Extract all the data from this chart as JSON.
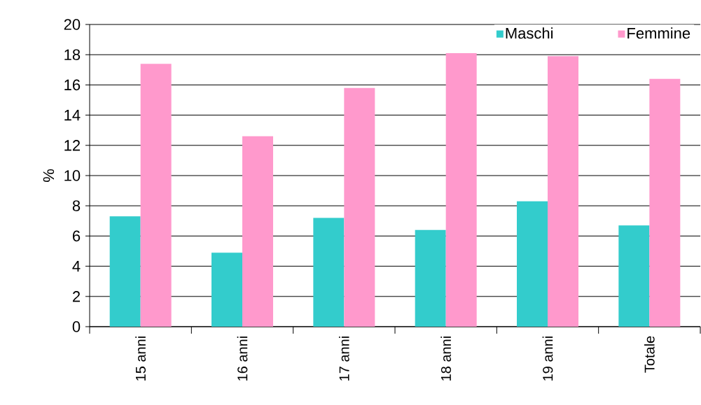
{
  "chart_data": {
    "type": "bar",
    "ylabel": "%",
    "categories": [
      "15 anni",
      "16 anni",
      "17 anni",
      "18 anni",
      "19 anni",
      "Totale"
    ],
    "series": [
      {
        "name": "Maschi",
        "color": "#33cccc",
        "values": [
          7.3,
          4.9,
          7.2,
          6.4,
          8.3,
          6.7
        ]
      },
      {
        "name": "Femmine",
        "color": "#ff99cc",
        "values": [
          17.4,
          12.6,
          15.8,
          18.1,
          17.9,
          16.4
        ]
      }
    ],
    "ylim": [
      0,
      20
    ],
    "yticks": [
      0,
      2,
      4,
      6,
      8,
      10,
      12,
      14,
      16,
      18,
      20
    ],
    "grid": "y",
    "legend": "top"
  }
}
